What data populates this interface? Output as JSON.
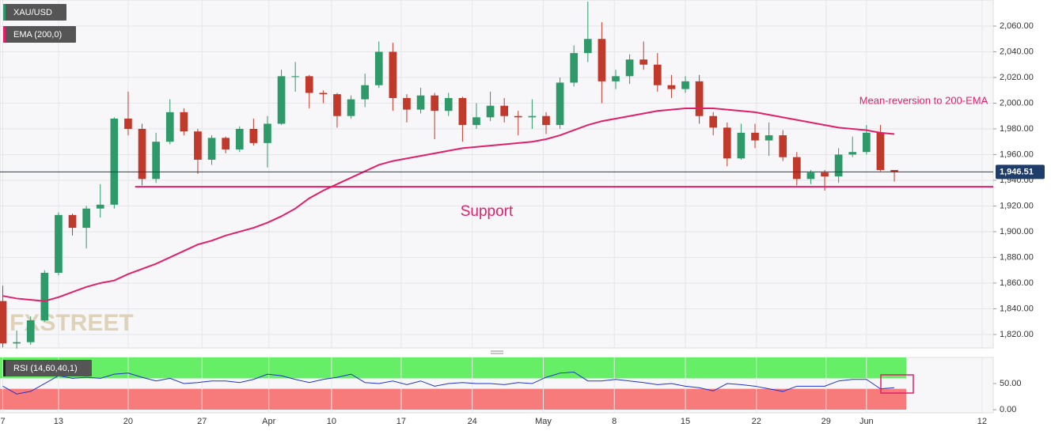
{
  "chart_data": [
    {
      "type": "candlestick",
      "title": "XAU/USD",
      "x": [
        0,
        1,
        2,
        3,
        4,
        5,
        6,
        7,
        8,
        9,
        10,
        11,
        12,
        13,
        14,
        15,
        16,
        17,
        18,
        19,
        20,
        21,
        22,
        23,
        24,
        25,
        26,
        27,
        28,
        29,
        30,
        31,
        32,
        33,
        34,
        35,
        36,
        37,
        38,
        39,
        40,
        41,
        42,
        43,
        44,
        45,
        46,
        47,
        48,
        49,
        50,
        51,
        52,
        53,
        54,
        55,
        56,
        57,
        58,
        59,
        60,
        61,
        62,
        63,
        64
      ],
      "open": [
        1846,
        1813,
        1814,
        1831,
        1868,
        1913,
        1903,
        1918,
        1921,
        1988,
        1980,
        1941,
        1970,
        1993,
        1978,
        1956,
        1973,
        1964,
        1980,
        1969,
        1984,
        2021,
        2021,
        2008,
        2007,
        1990,
        2003,
        2014,
        2040,
        2004,
        1995,
        2006,
        1994,
        2004,
        1983,
        1989,
        1998,
        1990,
        1989,
        1990,
        1983,
        2016,
        2039,
        2050,
        2017,
        2021,
        2034,
        2030,
        2014,
        2011,
        2017,
        1990,
        1981,
        1957,
        1977,
        1971,
        1975,
        1958,
        1941,
        1946,
        1943,
        1960,
        1962,
        1977,
        1948
      ],
      "high": [
        1858,
        1823,
        1834,
        1870,
        1915,
        1914,
        1920,
        1937,
        1989,
        2009,
        1984,
        1977,
        2003,
        1996,
        1980,
        1975,
        1974,
        1982,
        1988,
        1990,
        2026,
        2032,
        2022,
        2010,
        2008,
        2006,
        2023,
        2048,
        2047,
        2007,
        2012,
        2008,
        2008,
        2005,
        2000,
        2009,
        2004,
        1994,
        2003,
        1993,
        2020,
        2045,
        2079,
        2063,
        2026,
        2038,
        2048,
        2039,
        2022,
        2021,
        2022,
        1993,
        1985,
        1984,
        1984,
        1985,
        1979,
        1962,
        1948,
        1948,
        1965,
        1974,
        1983,
        1983,
        1948
      ],
      "low": [
        1810,
        1809,
        1812,
        1830,
        1866,
        1897,
        1887,
        1911,
        1918,
        1975,
        1936,
        1938,
        1968,
        1975,
        1945,
        1952,
        1961,
        1962,
        1967,
        1950,
        1983,
        2009,
        1996,
        2000,
        1981,
        1988,
        1997,
        2012,
        1994,
        1985,
        1992,
        1972,
        1990,
        1970,
        1980,
        1986,
        1985,
        1975,
        1980,
        1976,
        1980,
        2013,
        2032,
        2000,
        2011,
        2015,
        2026,
        2009,
        2004,
        2008,
        1984,
        1975,
        1951,
        1956,
        1965,
        1959,
        1955,
        1936,
        1937,
        1932,
        1938,
        1958,
        1960,
        1947,
        1939
      ],
      "close": [
        1813,
        1814,
        1831,
        1868,
        1913,
        1903,
        1918,
        1921,
        1988,
        1980,
        1941,
        1970,
        1993,
        1978,
        1956,
        1973,
        1964,
        1980,
        1969,
        1984,
        2021,
        2021,
        2008,
        2007,
        1990,
        2003,
        2014,
        2040,
        2004,
        1995,
        2006,
        1994,
        2004,
        1983,
        1989,
        1998,
        1990,
        1989,
        1990,
        1983,
        2016,
        2039,
        2050,
        2017,
        2021,
        2034,
        2030,
        2014,
        2011,
        2017,
        1990,
        1981,
        1957,
        1977,
        1971,
        1975,
        1958,
        1941,
        1946,
        1943,
        1960,
        1962,
        1977,
        1948,
        1946.51
      ],
      "up_color": "#2e9a6a",
      "down_color": "#c0392b",
      "ema": {
        "name": "EMA (200,0)",
        "color": "#e0206a",
        "values": [
          1850,
          1848,
          1847,
          1846,
          1849,
          1853,
          1857,
          1860,
          1862,
          1867,
          1871,
          1875,
          1880,
          1885,
          1890,
          1893,
          1897,
          1900,
          1903,
          1907,
          1912,
          1918,
          1926,
          1932,
          1937,
          1942,
          1947,
          1952,
          1955,
          1957,
          1959,
          1961,
          1963,
          1965,
          1966,
          1967,
          1968,
          1969,
          1970,
          1972,
          1975,
          1979,
          1983,
          1986,
          1988,
          1990,
          1992,
          1994,
          1995,
          1996,
          1996,
          1996,
          1995,
          1994,
          1993,
          1991,
          1989,
          1987,
          1985,
          1983,
          1981,
          1980,
          1979,
          1977,
          1976
        ]
      },
      "last_price": {
        "value": 1946.51,
        "label": "1,946.51"
      },
      "support": {
        "text": "Support",
        "value": 1935,
        "from": 9.5
      },
      "annotation": "Mean-reversion to 200-EMA",
      "watermark": "FXSTREET",
      "xlim": [
        -0.2,
        71.1
      ],
      "xticks": [
        {
          "value": 0,
          "label": "7"
        },
        {
          "value": 4,
          "label": "13"
        },
        {
          "value": 9,
          "label": "20"
        },
        {
          "value": 14.3,
          "label": "27"
        },
        {
          "value": 19.1,
          "label": "Apr"
        },
        {
          "value": 23.6,
          "label": "10"
        },
        {
          "value": 28.6,
          "label": "17"
        },
        {
          "value": 33.7,
          "label": "24"
        },
        {
          "value": 38.8,
          "label": "May"
        },
        {
          "value": 43.9,
          "label": "8"
        },
        {
          "value": 49,
          "label": "15"
        },
        {
          "value": 54.1,
          "label": "22"
        },
        {
          "value": 59.1,
          "label": "29"
        },
        {
          "value": 62,
          "label": "Jun"
        },
        {
          "value": 70.3,
          "label": "12"
        }
      ],
      "ylim": [
        1809.5,
        2080.3
      ],
      "yticks": [
        {
          "value": 1820,
          "label": "1,820.00"
        },
        {
          "value": 1840,
          "label": "1,840.00"
        },
        {
          "value": 1860,
          "label": "1,860.00"
        },
        {
          "value": 1880,
          "label": "1,880.00"
        },
        {
          "value": 1900,
          "label": "1,900.00"
        },
        {
          "value": 1920,
          "label": "1,920.00"
        },
        {
          "value": 1940,
          "label": "1,940.00"
        },
        {
          "value": 1960,
          "label": "1,960.00"
        },
        {
          "value": 1980,
          "label": "1,980.00"
        },
        {
          "value": 2000,
          "label": "2,000.00"
        },
        {
          "value": 2020,
          "label": "2,020.00"
        },
        {
          "value": 2040,
          "label": "2,040.00"
        },
        {
          "value": 2060,
          "label": "2,060.00"
        }
      ],
      "grid": true
    },
    {
      "type": "line",
      "title": "RSI (14,60,40,1)",
      "color": "#2233cc",
      "values": [
        45,
        30,
        35,
        50,
        65,
        60,
        62,
        60,
        68,
        70,
        62,
        55,
        60,
        50,
        52,
        55,
        55,
        52,
        58,
        68,
        65,
        58,
        52,
        58,
        62,
        68,
        52,
        50,
        55,
        48,
        55,
        45,
        50,
        52,
        50,
        50,
        48,
        52,
        50,
        62,
        70,
        72,
        55,
        55,
        58,
        55,
        52,
        48,
        50,
        45,
        42,
        36,
        50,
        48,
        45,
        40,
        35,
        45,
        45,
        45,
        55,
        58,
        58,
        40,
        42
      ],
      "upper": 60,
      "lower": 40,
      "upper_color": "#66ee66",
      "lower_color": "#f77b7b",
      "ylim": [
        -6,
        100
      ],
      "yticks": [
        {
          "value": 0,
          "label": "0.00"
        },
        {
          "value": 50,
          "label": "50.00"
        }
      ]
    }
  ]
}
